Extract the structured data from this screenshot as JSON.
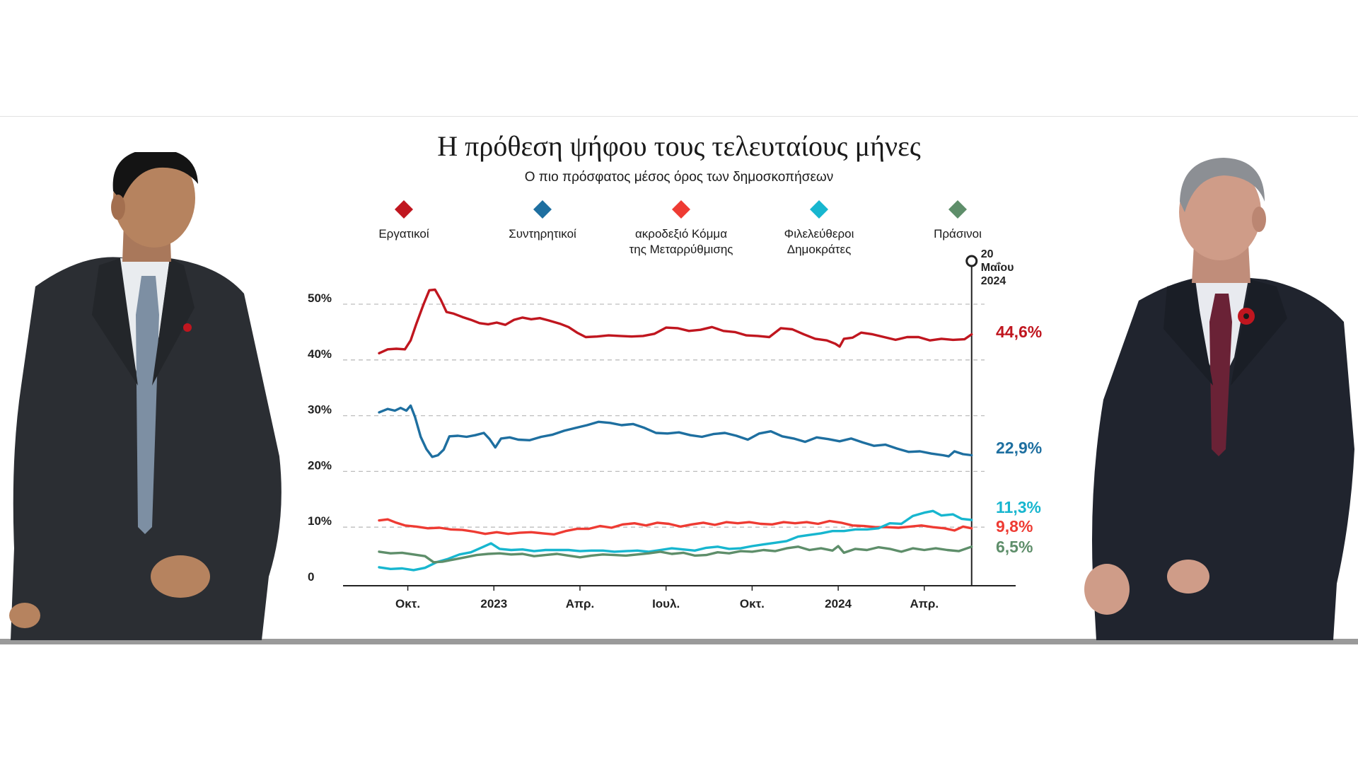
{
  "header": {
    "title": "Η πρόθεση ψήφου τους τελευταίους μήνες",
    "subtitle": "Ο πιο πρόσφατος μέσος όρος των δημοσκοπήσεων"
  },
  "colors": {
    "labour": "#c0161f",
    "conservative": "#1e6fa0",
    "reform": "#ee3b33",
    "libdem": "#17b6cf",
    "green": "#5e8e6a",
    "gridline": "#bdbdbd",
    "axis": "#222222"
  },
  "chart_data": {
    "type": "line",
    "title": "Η πρόθεση ψήφου τους τελευταίους μήνες",
    "subtitle": "Ο πιο πρόσφατος μέσος όρος των δημοσκοπήσεων",
    "xlabel": "",
    "ylabel": "",
    "x_range": [
      0,
      21.1
    ],
    "x_unit": "months since 1 Sep 2022",
    "ylim": [
      0,
      55
    ],
    "yticks": [
      {
        "value": 0,
        "label": "0"
      },
      {
        "value": 10,
        "label": "10%"
      },
      {
        "value": 20,
        "label": "20%"
      },
      {
        "value": 30,
        "label": "30%"
      },
      {
        "value": 40,
        "label": "40%"
      },
      {
        "value": 50,
        "label": "50%"
      }
    ],
    "xticks": [
      {
        "value": 1,
        "label": "Οκτ."
      },
      {
        "value": 4,
        "label": "2023"
      },
      {
        "value": 7,
        "label": "Απρ."
      },
      {
        "value": 10,
        "label": "Ιουλ."
      },
      {
        "value": 13,
        "label": "Οκτ."
      },
      {
        "value": 16,
        "label": "2024"
      },
      {
        "value": 19,
        "label": "Απρ."
      }
    ],
    "grid": "dashed horizontal",
    "marker": {
      "x": 20.65,
      "label_lines": [
        "20",
        "Μαΐου",
        "2024"
      ]
    },
    "series": [
      {
        "key": "labour",
        "name": "Εργατικοί",
        "final_label": "44,6%",
        "color": "#c0161f",
        "points": [
          [
            0,
            41.2
          ],
          [
            0.3,
            41.9
          ],
          [
            0.6,
            42
          ],
          [
            0.9,
            41.9
          ],
          [
            1.1,
            43.5
          ],
          [
            1.3,
            46.5
          ],
          [
            1.55,
            50
          ],
          [
            1.75,
            52.5
          ],
          [
            1.95,
            52.6
          ],
          [
            2.15,
            50.8
          ],
          [
            2.35,
            48.6
          ],
          [
            2.6,
            48.3
          ],
          [
            2.9,
            47.7
          ],
          [
            3.2,
            47.2
          ],
          [
            3.5,
            46.6
          ],
          [
            3.8,
            46.4
          ],
          [
            4.1,
            46.7
          ],
          [
            4.4,
            46.3
          ],
          [
            4.7,
            47.2
          ],
          [
            5,
            47.6
          ],
          [
            5.3,
            47.3
          ],
          [
            5.6,
            47.5
          ],
          [
            5.9,
            47.1
          ],
          [
            6.3,
            46.5
          ],
          [
            6.6,
            45.9
          ],
          [
            6.9,
            44.9
          ],
          [
            7.2,
            44.1
          ],
          [
            7.6,
            44.2
          ],
          [
            8,
            44.4
          ],
          [
            8.4,
            44.3
          ],
          [
            8.8,
            44.2
          ],
          [
            9.2,
            44.3
          ],
          [
            9.6,
            44.7
          ],
          [
            10,
            45.8
          ],
          [
            10.4,
            45.7
          ],
          [
            10.8,
            45.2
          ],
          [
            11.2,
            45.4
          ],
          [
            11.6,
            45.9
          ],
          [
            12,
            45.2
          ],
          [
            12.4,
            45
          ],
          [
            12.8,
            44.4
          ],
          [
            13.2,
            44.3
          ],
          [
            13.6,
            44.1
          ],
          [
            14,
            45.7
          ],
          [
            14.4,
            45.5
          ],
          [
            14.8,
            44.6
          ],
          [
            15.2,
            43.8
          ],
          [
            15.6,
            43.5
          ],
          [
            15.9,
            42.9
          ],
          [
            16.05,
            42.4
          ],
          [
            16.2,
            43.8
          ],
          [
            16.5,
            44
          ],
          [
            16.8,
            44.9
          ],
          [
            17.2,
            44.6
          ],
          [
            17.6,
            44.1
          ],
          [
            18,
            43.6
          ],
          [
            18.4,
            44.1
          ],
          [
            18.8,
            44.1
          ],
          [
            19.2,
            43.5
          ],
          [
            19.6,
            43.8
          ],
          [
            20,
            43.6
          ],
          [
            20.4,
            43.7
          ],
          [
            20.65,
            44.6
          ]
        ]
      },
      {
        "key": "conservative",
        "name": "Συντηρητικοί",
        "final_label": "22,9%",
        "color": "#1e6fa0",
        "points": [
          [
            0,
            30.6
          ],
          [
            0.3,
            31.2
          ],
          [
            0.55,
            30.9
          ],
          [
            0.75,
            31.4
          ],
          [
            0.95,
            30.9
          ],
          [
            1.1,
            31.8
          ],
          [
            1.25,
            29.8
          ],
          [
            1.45,
            26.2
          ],
          [
            1.65,
            24
          ],
          [
            1.85,
            22.6
          ],
          [
            2.05,
            22.9
          ],
          [
            2.25,
            23.9
          ],
          [
            2.45,
            26.3
          ],
          [
            2.75,
            26.4
          ],
          [
            3.05,
            26.2
          ],
          [
            3.35,
            26.5
          ],
          [
            3.65,
            26.9
          ],
          [
            3.85,
            25.8
          ],
          [
            4.05,
            24.3
          ],
          [
            4.25,
            25.9
          ],
          [
            4.55,
            26.1
          ],
          [
            4.85,
            25.7
          ],
          [
            5.25,
            25.6
          ],
          [
            5.65,
            26.2
          ],
          [
            6.05,
            26.6
          ],
          [
            6.45,
            27.3
          ],
          [
            6.85,
            27.8
          ],
          [
            7.25,
            28.3
          ],
          [
            7.65,
            28.9
          ],
          [
            8.05,
            28.7
          ],
          [
            8.45,
            28.3
          ],
          [
            8.85,
            28.5
          ],
          [
            9.25,
            27.8
          ],
          [
            9.65,
            26.9
          ],
          [
            10.05,
            26.8
          ],
          [
            10.45,
            27
          ],
          [
            10.85,
            26.5
          ],
          [
            11.25,
            26.2
          ],
          [
            11.65,
            26.7
          ],
          [
            12.05,
            26.9
          ],
          [
            12.45,
            26.4
          ],
          [
            12.85,
            25.7
          ],
          [
            13.25,
            26.8
          ],
          [
            13.65,
            27.2
          ],
          [
            14.05,
            26.3
          ],
          [
            14.45,
            25.9
          ],
          [
            14.85,
            25.3
          ],
          [
            15.25,
            26.1
          ],
          [
            15.65,
            25.8
          ],
          [
            16.05,
            25.4
          ],
          [
            16.45,
            25.9
          ],
          [
            16.85,
            25.2
          ],
          [
            17.25,
            24.6
          ],
          [
            17.65,
            24.8
          ],
          [
            18.05,
            24.1
          ],
          [
            18.45,
            23.5
          ],
          [
            18.85,
            23.6
          ],
          [
            19.25,
            23.2
          ],
          [
            19.65,
            22.9
          ],
          [
            19.85,
            22.7
          ],
          [
            20.05,
            23.6
          ],
          [
            20.35,
            23.1
          ],
          [
            20.65,
            22.9
          ]
        ]
      },
      {
        "key": "reform",
        "name": "ακροδεξιό Κόμμα της Μεταρρύθμισης",
        "final_label": "9,8%",
        "color": "#ee3b33",
        "points": [
          [
            0,
            11.2
          ],
          [
            0.3,
            11.4
          ],
          [
            0.6,
            10.8
          ],
          [
            0.9,
            10.3
          ],
          [
            1.3,
            10.1
          ],
          [
            1.7,
            9.8
          ],
          [
            2.1,
            9.9
          ],
          [
            2.5,
            9.6
          ],
          [
            2.9,
            9.5
          ],
          [
            3.3,
            9.2
          ],
          [
            3.7,
            8.8
          ],
          [
            4.1,
            9.1
          ],
          [
            4.5,
            8.8
          ],
          [
            4.9,
            9
          ],
          [
            5.3,
            9.1
          ],
          [
            5.7,
            8.9
          ],
          [
            6.1,
            8.7
          ],
          [
            6.5,
            9.3
          ],
          [
            6.9,
            9.7
          ],
          [
            7.3,
            9.7
          ],
          [
            7.7,
            10.2
          ],
          [
            8.1,
            9.9
          ],
          [
            8.5,
            10.5
          ],
          [
            8.9,
            10.7
          ],
          [
            9.3,
            10.3
          ],
          [
            9.7,
            10.8
          ],
          [
            10.1,
            10.6
          ],
          [
            10.5,
            10.1
          ],
          [
            10.9,
            10.5
          ],
          [
            11.3,
            10.8
          ],
          [
            11.7,
            10.4
          ],
          [
            12.1,
            10.9
          ],
          [
            12.5,
            10.7
          ],
          [
            12.9,
            10.9
          ],
          [
            13.3,
            10.6
          ],
          [
            13.7,
            10.5
          ],
          [
            14.1,
            10.9
          ],
          [
            14.5,
            10.7
          ],
          [
            14.9,
            10.9
          ],
          [
            15.3,
            10.6
          ],
          [
            15.7,
            11.1
          ],
          [
            16.1,
            10.8
          ],
          [
            16.5,
            10.3
          ],
          [
            16.9,
            10.2
          ],
          [
            17.3,
            10
          ],
          [
            17.7,
            10
          ],
          [
            18.1,
            9.9
          ],
          [
            18.5,
            10.1
          ],
          [
            18.9,
            10.3
          ],
          [
            19.3,
            10
          ],
          [
            19.7,
            9.8
          ],
          [
            20.05,
            9.4
          ],
          [
            20.35,
            10.1
          ],
          [
            20.65,
            9.8
          ]
        ]
      },
      {
        "key": "libdem",
        "name": "Φιλελεύθεροι Δημοκράτες",
        "final_label": "11,3%",
        "color": "#17b6cf",
        "points": [
          [
            0,
            2.8
          ],
          [
            0.4,
            2.5
          ],
          [
            0.8,
            2.6
          ],
          [
            1.2,
            2.3
          ],
          [
            1.6,
            2.7
          ],
          [
            2,
            3.7
          ],
          [
            2.4,
            4.3
          ],
          [
            2.8,
            5.1
          ],
          [
            3.2,
            5.5
          ],
          [
            3.6,
            6.4
          ],
          [
            3.9,
            7.1
          ],
          [
            4.2,
            6.1
          ],
          [
            4.6,
            5.9
          ],
          [
            5,
            6
          ],
          [
            5.4,
            5.7
          ],
          [
            5.8,
            5.9
          ],
          [
            6.2,
            5.9
          ],
          [
            6.6,
            5.9
          ],
          [
            7,
            5.7
          ],
          [
            7.4,
            5.8
          ],
          [
            7.8,
            5.8
          ],
          [
            8.2,
            5.6
          ],
          [
            8.6,
            5.7
          ],
          [
            9,
            5.8
          ],
          [
            9.4,
            5.6
          ],
          [
            9.8,
            5.9
          ],
          [
            10.2,
            6.2
          ],
          [
            10.6,
            6
          ],
          [
            11,
            5.8
          ],
          [
            11.4,
            6.3
          ],
          [
            11.8,
            6.5
          ],
          [
            12.2,
            6.1
          ],
          [
            12.6,
            6.2
          ],
          [
            13,
            6.6
          ],
          [
            13.4,
            6.9
          ],
          [
            13.8,
            7.2
          ],
          [
            14.2,
            7.5
          ],
          [
            14.6,
            8.3
          ],
          [
            15,
            8.6
          ],
          [
            15.4,
            8.9
          ],
          [
            15.8,
            9.3
          ],
          [
            16.2,
            9.3
          ],
          [
            16.6,
            9.6
          ],
          [
            17,
            9.6
          ],
          [
            17.4,
            9.8
          ],
          [
            17.8,
            10.7
          ],
          [
            18.2,
            10.6
          ],
          [
            18.6,
            12
          ],
          [
            19,
            12.6
          ],
          [
            19.3,
            12.9
          ],
          [
            19.6,
            12.1
          ],
          [
            20,
            12.3
          ],
          [
            20.3,
            11.5
          ],
          [
            20.65,
            11.3
          ]
        ]
      },
      {
        "key": "green",
        "name": "Πράσινοι",
        "final_label": "6,5%",
        "color": "#5e8e6a",
        "points": [
          [
            0,
            5.6
          ],
          [
            0.4,
            5.3
          ],
          [
            0.8,
            5.4
          ],
          [
            1.2,
            5.1
          ],
          [
            1.6,
            4.8
          ],
          [
            1.9,
            3.7
          ],
          [
            2.2,
            3.8
          ],
          [
            2.6,
            4.2
          ],
          [
            3,
            4.6
          ],
          [
            3.4,
            5
          ],
          [
            3.8,
            5.2
          ],
          [
            4.2,
            5.3
          ],
          [
            4.6,
            5.1
          ],
          [
            5,
            5.2
          ],
          [
            5.4,
            4.8
          ],
          [
            5.8,
            5
          ],
          [
            6.2,
            5.2
          ],
          [
            6.6,
            4.9
          ],
          [
            7,
            4.6
          ],
          [
            7.4,
            4.9
          ],
          [
            7.8,
            5.1
          ],
          [
            8.2,
            5
          ],
          [
            8.6,
            4.9
          ],
          [
            9,
            5.1
          ],
          [
            9.4,
            5.3
          ],
          [
            9.8,
            5.6
          ],
          [
            10.2,
            5.2
          ],
          [
            10.6,
            5.4
          ],
          [
            11,
            4.9
          ],
          [
            11.4,
            5
          ],
          [
            11.8,
            5.5
          ],
          [
            12.2,
            5.3
          ],
          [
            12.6,
            5.7
          ],
          [
            13,
            5.6
          ],
          [
            13.4,
            5.9
          ],
          [
            13.8,
            5.7
          ],
          [
            14.2,
            6.2
          ],
          [
            14.6,
            6.5
          ],
          [
            15,
            5.9
          ],
          [
            15.4,
            6.2
          ],
          [
            15.8,
            5.8
          ],
          [
            16,
            6.6
          ],
          [
            16.2,
            5.4
          ],
          [
            16.6,
            6.1
          ],
          [
            17,
            5.9
          ],
          [
            17.4,
            6.4
          ],
          [
            17.8,
            6.1
          ],
          [
            18.2,
            5.6
          ],
          [
            18.6,
            6.2
          ],
          [
            19,
            5.9
          ],
          [
            19.4,
            6.2
          ],
          [
            19.8,
            5.9
          ],
          [
            20.2,
            5.7
          ],
          [
            20.65,
            6.5
          ]
        ]
      }
    ]
  }
}
